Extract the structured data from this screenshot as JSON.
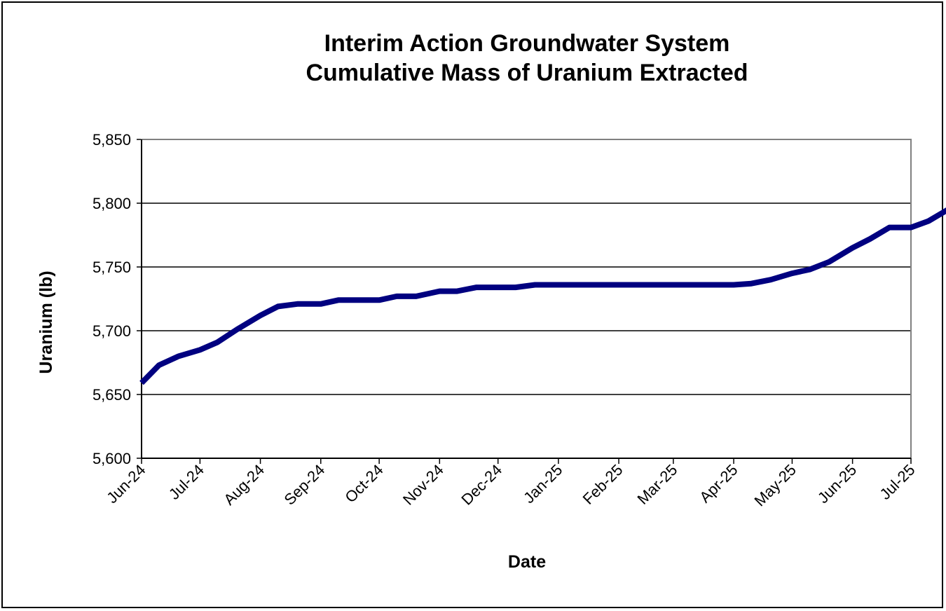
{
  "chart_data": {
    "type": "line",
    "title_lines": [
      "Interim  Action Groundwater System",
      "Cumulative Mass of Uranium Extracted"
    ],
    "xlabel": "Date",
    "ylabel": "Uranium (lb)",
    "x_ticks": [
      "Jun-24",
      "Jul-24",
      "Aug-24",
      "Sep-24",
      "Oct-24",
      "Nov-24",
      "Dec-24",
      "Jan-25",
      "Feb-25",
      "Mar-25",
      "Apr-25",
      "May-25",
      "Jun-25",
      "Jul-25"
    ],
    "y_ticks": [
      "5,600",
      "5,650",
      "5,700",
      "5,750",
      "5,800",
      "5,850"
    ],
    "ylim": [
      5600,
      5850
    ],
    "grid": "horizontal",
    "legend": "none",
    "series": [
      {
        "color": "#000080",
        "points": [
          [
            "2024-06-01",
            5659
          ],
          [
            "2024-06-10",
            5673
          ],
          [
            "2024-06-20",
            5680
          ],
          [
            "2024-07-01",
            5685
          ],
          [
            "2024-07-10",
            5691
          ],
          [
            "2024-07-20",
            5701
          ],
          [
            "2024-08-01",
            5712
          ],
          [
            "2024-08-10",
            5719
          ],
          [
            "2024-08-20",
            5721
          ],
          [
            "2024-09-01",
            5721
          ],
          [
            "2024-09-10",
            5724
          ],
          [
            "2024-09-20",
            5724
          ],
          [
            "2024-10-01",
            5724
          ],
          [
            "2024-10-10",
            5727
          ],
          [
            "2024-10-20",
            5727
          ],
          [
            "2024-11-01",
            5731
          ],
          [
            "2024-11-10",
            5731
          ],
          [
            "2024-11-20",
            5734
          ],
          [
            "2024-12-01",
            5734
          ],
          [
            "2024-12-10",
            5734
          ],
          [
            "2024-12-20",
            5736
          ],
          [
            "2025-01-01",
            5736
          ],
          [
            "2025-02-01",
            5736
          ],
          [
            "2025-03-01",
            5736
          ],
          [
            "2025-04-01",
            5736
          ],
          [
            "2025-04-10",
            5737
          ],
          [
            "2025-04-20",
            5740
          ],
          [
            "2025-05-01",
            5745
          ],
          [
            "2025-05-10",
            5748
          ],
          [
            "2025-05-20",
            5754
          ],
          [
            "2025-06-01",
            5765
          ],
          [
            "2025-06-10",
            5772
          ],
          [
            "2025-06-20",
            5781
          ],
          [
            "2025-07-01",
            5781
          ],
          [
            "2025-07-10",
            5786
          ],
          [
            "2025-07-20",
            5795
          ],
          [
            "2025-08-01",
            5796
          ]
        ]
      }
    ]
  }
}
